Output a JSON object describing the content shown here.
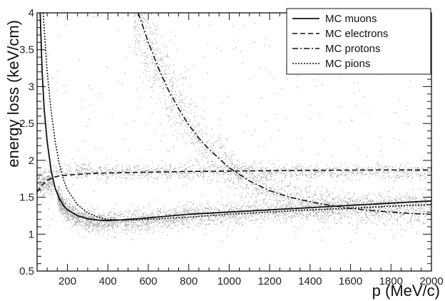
{
  "chart_data": {
    "type": "scatter",
    "title": "",
    "xlabel": "p (MeV/c)",
    "ylabel": "energy loss (keV/cm)",
    "xlim": [
      50,
      2000
    ],
    "ylim": [
      0.5,
      4.0
    ],
    "x_ticks": [
      200,
      400,
      600,
      800,
      1000,
      1200,
      1400,
      1600,
      1800,
      2000
    ],
    "y_ticks": [
      0.5,
      1,
      1.5,
      2,
      2.5,
      3,
      3.5,
      4
    ],
    "x_tick_labels": [
      "200",
      "400",
      "600",
      "800",
      "1000",
      "1200",
      "1400",
      "1600",
      "1800",
      "2000"
    ],
    "y_tick_labels": [
      "0.5",
      "1",
      "1.5",
      "2",
      "2.5",
      "3",
      "3.5",
      "4"
    ],
    "grid": false,
    "legend_position": "top-right",
    "series": [
      {
        "name": "MC muons",
        "style": "solid",
        "color": "#111111",
        "x": [
          65,
          75,
          85,
          100,
          120,
          140,
          160,
          180,
          200,
          250,
          300,
          350,
          400,
          450,
          500,
          600,
          700,
          800,
          1000,
          1200,
          1400,
          1600,
          1800,
          2000
        ],
        "y": [
          4.0,
          3.2,
          2.7,
          2.25,
          1.85,
          1.62,
          1.48,
          1.39,
          1.33,
          1.25,
          1.21,
          1.19,
          1.185,
          1.19,
          1.2,
          1.22,
          1.245,
          1.27,
          1.3,
          1.33,
          1.36,
          1.39,
          1.42,
          1.45
        ]
      },
      {
        "name": "MC electrons",
        "style": "dashed",
        "color": "#111111",
        "x": [
          50,
          70,
          100,
          130,
          160,
          200,
          300,
          400,
          600,
          800,
          1000,
          1200,
          1400,
          1600,
          1800,
          2000
        ],
        "y": [
          1.57,
          1.65,
          1.73,
          1.77,
          1.79,
          1.8,
          1.82,
          1.83,
          1.84,
          1.85,
          1.855,
          1.86,
          1.865,
          1.868,
          1.87,
          1.87
        ]
      },
      {
        "name": "MC protons",
        "style": "dash-dot",
        "color": "#111111",
        "x": [
          550,
          600,
          650,
          700,
          750,
          800,
          850,
          900,
          1000,
          1100,
          1200,
          1300,
          1400,
          1500,
          1600,
          1700,
          1800,
          1900,
          2000
        ],
        "y": [
          4.0,
          3.6,
          3.25,
          2.95,
          2.7,
          2.48,
          2.3,
          2.15,
          1.9,
          1.72,
          1.59,
          1.5,
          1.44,
          1.39,
          1.35,
          1.32,
          1.3,
          1.28,
          1.27
        ]
      },
      {
        "name": "MC pions",
        "style": "dotted",
        "color": "#111111",
        "x": [
          80,
          90,
          100,
          120,
          140,
          160,
          180,
          200,
          250,
          300,
          350,
          400,
          500,
          600,
          800,
          1000,
          1200,
          1400,
          1600,
          1800,
          2000
        ],
        "y": [
          4.0,
          3.6,
          3.2,
          2.65,
          2.25,
          1.95,
          1.74,
          1.6,
          1.4,
          1.29,
          1.23,
          1.2,
          1.19,
          1.2,
          1.23,
          1.27,
          1.3,
          1.33,
          1.35,
          1.38,
          1.4
        ]
      }
    ],
    "scatter_data_note": "",
    "scatter_color": "#9a9a9a",
    "scatter_clusters": [
      {
        "x0": 50,
        "x1": 130,
        "y0": 1.45,
        "y1": 2.0,
        "count": 260
      },
      {
        "x0": 130,
        "x1": 2000,
        "y0": 1.72,
        "y1": 1.98,
        "count": 1250
      },
      {
        "x0": 150,
        "x1": 2000,
        "y0": 1.0,
        "y1": 1.55,
        "count": 2800
      },
      {
        "x0": 530,
        "x1": 2000,
        "y0": 1.3,
        "y1": 4.0,
        "count": 1600,
        "follow": "protons"
      },
      {
        "x0": 60,
        "x1": 2000,
        "y0": 0.9,
        "y1": 4.0,
        "count": 350
      }
    ]
  }
}
